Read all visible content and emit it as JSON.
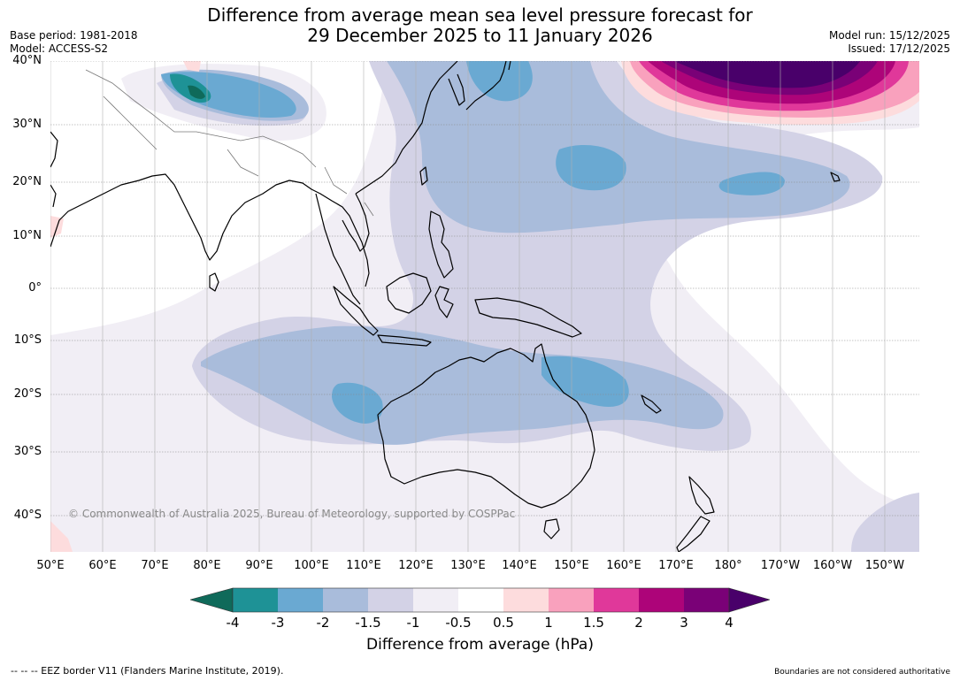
{
  "title_line1": "Difference from average mean sea level pressure forecast for",
  "title_line2": "29 December 2025 to 11 January 2026",
  "base_period": "Base period: 1981-2018",
  "model": "Model: ACCESS-S2",
  "model_run": "Model run: 15/12/2025",
  "issued": "Issued: 17/12/2025",
  "copyright": "© Commonwealth of Australia 2025, Bureau of Meteorology, supported by COSPPac",
  "lat_labels": [
    "40°N",
    "30°N",
    "20°N",
    "10°N",
    "0°",
    "10°S",
    "20°S",
    "30°S",
    "40°S"
  ],
  "lon_labels": [
    "50°E",
    "60°E",
    "70°E",
    "80°E",
    "90°E",
    "100°E",
    "110°E",
    "120°E",
    "130°E",
    "140°E",
    "150°E",
    "160°E",
    "170°E",
    "180°",
    "170°W",
    "160°W",
    "150°W"
  ],
  "colorbar": {
    "ticks": [
      "-4",
      "-3",
      "-2",
      "-1.5",
      "-1",
      "-0.5",
      "0.5",
      "1",
      "1.5",
      "2",
      "3",
      "4"
    ],
    "colors": {
      "below_-4": "#0f6a5a",
      "-4_-3": "#1e9296",
      "-3_-2": "#6aa9d2",
      "-2_-1.5": "#a9bcdb",
      "-1.5_-1": "#d3d2e6",
      "-1_-0.5": "#f1eef5",
      "-0.5_0.5": "#ffffff",
      "0.5_1": "#fddcdd",
      "1_1.5": "#f9a1bd",
      "1.5_2": "#e0389a",
      "2_3": "#ad0479",
      "3_4": "#7a0177",
      "above_4": "#49006a"
    }
  },
  "colorbar_title": "Difference from average (hPa)",
  "footer_left": "--  --  -- EEZ border V11 (Flanders Marine Institute, 2019).",
  "footer_right": "Boundaries are not considered authoritative"
}
